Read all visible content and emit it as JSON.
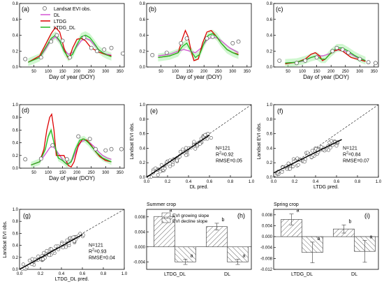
{
  "chart_data": [
    {
      "panel": "(a)",
      "type": "line",
      "xlabel": "Day of year (DOY)",
      "ylabel": "",
      "xlim": [
        0,
        365
      ],
      "ylim": [
        0,
        0.8
      ],
      "xticks": [
        "50",
        "100",
        "150",
        "200",
        "250",
        "300",
        "350"
      ],
      "yticks": [
        "0.0",
        "0.2",
        "0.4",
        "0.6",
        "0.8"
      ],
      "legend_position": "top-left",
      "legend": [
        "Landsat EVI obs.",
        "DL",
        "LTDG",
        "LTDG_DL"
      ],
      "obs": [
        [
          20,
          0.1
        ],
        [
          75,
          0.12
        ],
        [
          110,
          0.32
        ],
        [
          130,
          0.4
        ],
        [
          150,
          0.33
        ],
        [
          175,
          0.12
        ],
        [
          225,
          0.37
        ],
        [
          250,
          0.24
        ],
        [
          270,
          0.2
        ],
        [
          295,
          0.22
        ],
        [
          320,
          0.24
        ],
        [
          360,
          0.17
        ]
      ],
      "series": [
        {
          "name": "DL",
          "color": "#d455d4",
          "x": [
            30,
            70,
            90,
            110,
            125,
            140,
            155,
            170,
            185,
            200,
            215,
            230,
            245,
            260,
            275,
            290,
            305,
            320
          ],
          "values": [
            0.06,
            0.12,
            0.22,
            0.34,
            0.38,
            0.32,
            0.22,
            0.16,
            0.18,
            0.26,
            0.33,
            0.36,
            0.34,
            0.28,
            0.22,
            0.18,
            0.16,
            0.15
          ]
        },
        {
          "name": "LTDG",
          "color": "#dd0000",
          "x": [
            30,
            70,
            90,
            110,
            125,
            140,
            155,
            165,
            172,
            185,
            200,
            215,
            230,
            245,
            260,
            275,
            290,
            305,
            320
          ],
          "values": [
            0.06,
            0.14,
            0.28,
            0.42,
            0.5,
            0.44,
            0.24,
            0.14,
            0.1,
            0.24,
            0.35,
            0.36,
            0.33,
            0.26,
            0.22,
            0.19,
            0.17,
            0.15,
            0.14
          ]
        },
        {
          "name": "LTDG_DL",
          "color": "#22bb22",
          "x": [
            30,
            70,
            90,
            110,
            125,
            140,
            155,
            170,
            185,
            200,
            215,
            230,
            245,
            260,
            275,
            290,
            305,
            320
          ],
          "values": [
            0.06,
            0.12,
            0.24,
            0.36,
            0.4,
            0.33,
            0.2,
            0.12,
            0.16,
            0.28,
            0.38,
            0.4,
            0.37,
            0.3,
            0.22,
            0.18,
            0.15,
            0.13
          ]
        }
      ]
    },
    {
      "panel": "(b)",
      "type": "line",
      "xlabel": "Day of year (DOY)",
      "ylabel": "",
      "xlim": [
        0,
        365
      ],
      "ylim": [
        0,
        0.8
      ],
      "xticks": [
        "50",
        "100",
        "150",
        "200",
        "250",
        "300",
        "350"
      ],
      "yticks": [
        "0.0",
        "0.2",
        "0.4",
        "0.6",
        "0.8"
      ],
      "obs": [
        [
          20,
          0.15
        ],
        [
          70,
          0.18
        ],
        [
          120,
          0.3
        ],
        [
          140,
          0.36
        ],
        [
          210,
          0.36
        ],
        [
          230,
          0.38
        ],
        [
          300,
          0.3
        ],
        [
          320,
          0.32
        ]
      ],
      "series": [
        {
          "name": "DL",
          "color": "#d455d4",
          "x": [
            40,
            80,
            110,
            130,
            150,
            170,
            190,
            210,
            230,
            250,
            270,
            290,
            310,
            320
          ],
          "values": [
            0.14,
            0.16,
            0.2,
            0.22,
            0.2,
            0.18,
            0.24,
            0.34,
            0.38,
            0.36,
            0.3,
            0.24,
            0.2,
            0.18
          ]
        },
        {
          "name": "LTDG",
          "color": "#dd0000",
          "x": [
            40,
            80,
            110,
            125,
            135,
            145,
            155,
            165,
            180,
            195,
            210,
            225,
            240,
            260,
            280,
            300,
            320
          ],
          "values": [
            0.12,
            0.14,
            0.18,
            0.36,
            0.46,
            0.38,
            0.2,
            0.08,
            0.1,
            0.3,
            0.44,
            0.46,
            0.4,
            0.3,
            0.22,
            0.18,
            0.16
          ]
        },
        {
          "name": "LTDG_DL",
          "color": "#22bb22",
          "x": [
            40,
            80,
            110,
            125,
            140,
            155,
            170,
            185,
            200,
            215,
            230,
            245,
            260,
            280,
            300,
            320
          ],
          "values": [
            0.12,
            0.14,
            0.18,
            0.26,
            0.3,
            0.2,
            0.12,
            0.16,
            0.3,
            0.4,
            0.42,
            0.38,
            0.3,
            0.22,
            0.18,
            0.15
          ]
        }
      ]
    },
    {
      "panel": "(c)",
      "type": "line",
      "xlabel": "Day of year (DOY)",
      "ylabel": "",
      "xlim": [
        0,
        365
      ],
      "ylim": [
        0,
        0.8
      ],
      "xticks": [
        "50",
        "100",
        "150",
        "200",
        "250",
        "300",
        "350"
      ],
      "yticks": [
        "0.0",
        "0.2",
        "0.4",
        "0.6",
        "0.8"
      ],
      "obs": [
        [
          20,
          0.08
        ],
        [
          80,
          0.05
        ],
        [
          110,
          0.08
        ],
        [
          150,
          0.12
        ],
        [
          205,
          0.2
        ],
        [
          220,
          0.24
        ],
        [
          240,
          0.22
        ],
        [
          260,
          0.18
        ],
        [
          300,
          0.1
        ],
        [
          330,
          0.06
        ],
        [
          355,
          0.05
        ]
      ],
      "series": [
        {
          "name": "DL",
          "color": "#d455d4",
          "x": [
            40,
            80,
            110,
            130,
            150,
            170,
            190,
            210,
            230,
            250,
            270,
            290,
            310,
            320
          ],
          "values": [
            0.05,
            0.06,
            0.08,
            0.12,
            0.14,
            0.14,
            0.16,
            0.2,
            0.22,
            0.2,
            0.16,
            0.12,
            0.1,
            0.08
          ]
        },
        {
          "name": "LTDG",
          "color": "#dd0000",
          "x": [
            40,
            80,
            110,
            130,
            145,
            160,
            170,
            180,
            195,
            210,
            225,
            240,
            255,
            270,
            290,
            310,
            320
          ],
          "values": [
            0.04,
            0.06,
            0.1,
            0.16,
            0.18,
            0.14,
            0.08,
            0.1,
            0.16,
            0.2,
            0.22,
            0.2,
            0.16,
            0.12,
            0.1,
            0.08,
            0.07
          ]
        },
        {
          "name": "LTDG_DL",
          "color": "#22bb22",
          "x": [
            40,
            80,
            110,
            130,
            150,
            165,
            180,
            200,
            220,
            240,
            260,
            280,
            300,
            320
          ],
          "values": [
            0.05,
            0.06,
            0.09,
            0.12,
            0.14,
            0.1,
            0.1,
            0.18,
            0.24,
            0.24,
            0.2,
            0.15,
            0.11,
            0.08
          ]
        }
      ]
    },
    {
      "panel": "(d)",
      "type": "line",
      "xlabel": "Day of year (DOY)",
      "ylabel": "",
      "xlim": [
        0,
        365
      ],
      "ylim": [
        0,
        1.0
      ],
      "xticks": [
        "50",
        "100",
        "150",
        "200",
        "250",
        "300",
        "350"
      ],
      "yticks": [
        "0.0",
        "0.2",
        "0.4",
        "0.6",
        "0.8",
        "1.0"
      ],
      "obs": [
        [
          20,
          0.14
        ],
        [
          75,
          0.15
        ],
        [
          115,
          0.36
        ],
        [
          165,
          0.14
        ],
        [
          205,
          0.5
        ],
        [
          245,
          0.46
        ],
        [
          265,
          0.3
        ],
        [
          300,
          0.28
        ],
        [
          320,
          0.3
        ],
        [
          355,
          0.3
        ]
      ],
      "series": [
        {
          "name": "DL",
          "color": "#d455d4",
          "x": [
            40,
            70,
            90,
            105,
            115,
            125,
            140,
            155,
            170,
            185,
            200,
            215,
            230,
            245,
            260,
            275,
            290,
            305,
            320
          ],
          "values": [
            0.05,
            0.1,
            0.22,
            0.32,
            0.35,
            0.3,
            0.2,
            0.1,
            0.06,
            0.14,
            0.3,
            0.42,
            0.44,
            0.4,
            0.34,
            0.26,
            0.2,
            0.16,
            0.14
          ]
        },
        {
          "name": "LTDG",
          "color": "#dd0000",
          "x": [
            40,
            70,
            85,
            95,
            105,
            112,
            120,
            128,
            138,
            155,
            170,
            180,
            190,
            205,
            220,
            235,
            250,
            265,
            280,
            300,
            320
          ],
          "values": [
            0.05,
            0.1,
            0.3,
            0.6,
            0.8,
            0.85,
            0.6,
            0.2,
            0.2,
            0.2,
            0.04,
            0.02,
            0.1,
            0.36,
            0.46,
            0.44,
            0.36,
            0.26,
            0.18,
            0.12,
            0.1
          ]
        },
        {
          "name": "LTDG_DL",
          "color": "#22bb22",
          "x": [
            40,
            70,
            90,
            100,
            110,
            120,
            135,
            150,
            165,
            180,
            195,
            210,
            225,
            240,
            255,
            270,
            290,
            310,
            320
          ],
          "values": [
            0.05,
            0.1,
            0.3,
            0.5,
            0.6,
            0.4,
            0.16,
            0.12,
            0.06,
            0.1,
            0.3,
            0.44,
            0.46,
            0.4,
            0.32,
            0.24,
            0.16,
            0.12,
            0.1
          ]
        }
      ]
    },
    {
      "panel": "(e)",
      "type": "scatter",
      "xlabel": "DL pred.",
      "ylabel": "Landsat EVI obs.",
      "xlim": [
        0,
        1.0
      ],
      "ylim": [
        0,
        1.0
      ],
      "xticks": [
        "0.0",
        "0.2",
        "0.4",
        "0.6",
        "0.8",
        "1.0"
      ],
      "yticks": [
        "0.0",
        "0.2",
        "0.4",
        "0.6",
        "0.8",
        "1.0"
      ],
      "stats": [
        "N=121",
        "R2=0.92",
        "RMSE=0.05"
      ],
      "fit": [
        [
          0,
          -0.02
        ],
        [
          0.6,
          0.58
        ]
      ]
    },
    {
      "panel": "(f)",
      "type": "scatter",
      "xlabel": "LTDG pred.",
      "ylabel": "Landsat EVI obs.",
      "xlim": [
        0,
        1.0
      ],
      "ylim": [
        0,
        1.0
      ],
      "xticks": [
        "0.0",
        "0.2",
        "0.4",
        "0.6",
        "0.8",
        "1.0"
      ],
      "yticks": [
        "0.0",
        "0.2",
        "0.4",
        "0.6",
        "0.8",
        "1.0"
      ],
      "stats": [
        "N=121",
        "R2=0.84",
        "RMSE=0.07"
      ],
      "fit": [
        [
          0,
          0.06
        ],
        [
          0.65,
          0.52
        ]
      ]
    },
    {
      "panel": "(g)",
      "type": "scatter",
      "xlabel": "LTDG_DL pred.",
      "ylabel": "Landsat EVI obs.",
      "xlim": [
        0,
        1.0
      ],
      "ylim": [
        0,
        1.0
      ],
      "xticks": [
        "0.0",
        "0.2",
        "0.4",
        "0.6",
        "0.8",
        "1.0"
      ],
      "yticks": [
        "0.0",
        "0.2",
        "0.4",
        "0.6",
        "0.8",
        "1.0"
      ],
      "stats": [
        "N=121",
        "R2=0.93",
        "RMSE=0.04"
      ],
      "fit": [
        [
          0,
          0.0
        ],
        [
          0.6,
          0.58
        ]
      ]
    },
    {
      "panel": "(h)",
      "type": "bar",
      "title": "Summer crop",
      "categories": [
        "LTDG_DL",
        "DL"
      ],
      "legend": [
        "EVI growing slope",
        "EVI decline slope"
      ],
      "ylim": [
        -0.006,
        0.01
      ],
      "yticks": [
        "-0.004",
        "0.000",
        "0.004",
        "0.008"
      ],
      "series": [
        {
          "name": "EVI growing slope",
          "values": [
            0.0081,
            0.0054
          ],
          "errors": [
            0.0007,
            0.0009
          ],
          "letters": [
            "a",
            "b"
          ]
        },
        {
          "name": "EVI decline slope",
          "values": [
            -0.004,
            -0.004
          ],
          "errors": [
            0.0007,
            0.0007
          ],
          "letters": [
            "a",
            "a"
          ]
        }
      ]
    },
    {
      "panel": "(i)",
      "type": "bar",
      "title": "Spring crop",
      "categories": [
        "LTDG_DL",
        "DL"
      ],
      "ylim": [
        -0.012,
        0.01
      ],
      "yticks": [
        "-0.012",
        "-0.008",
        "-0.004",
        "0.000",
        "0.004",
        "0.008"
      ],
      "series": [
        {
          "name": "EVI growing slope",
          "values": [
            0.0063,
            0.0028
          ],
          "errors": [
            0.002,
            0.0015
          ],
          "letters": [
            "a",
            "b"
          ]
        },
        {
          "name": "EVI decline slope",
          "values": [
            -0.0058,
            -0.0054
          ],
          "errors": [
            0.0038,
            0.004
          ],
          "letters": [
            "a",
            "a"
          ]
        }
      ]
    }
  ]
}
